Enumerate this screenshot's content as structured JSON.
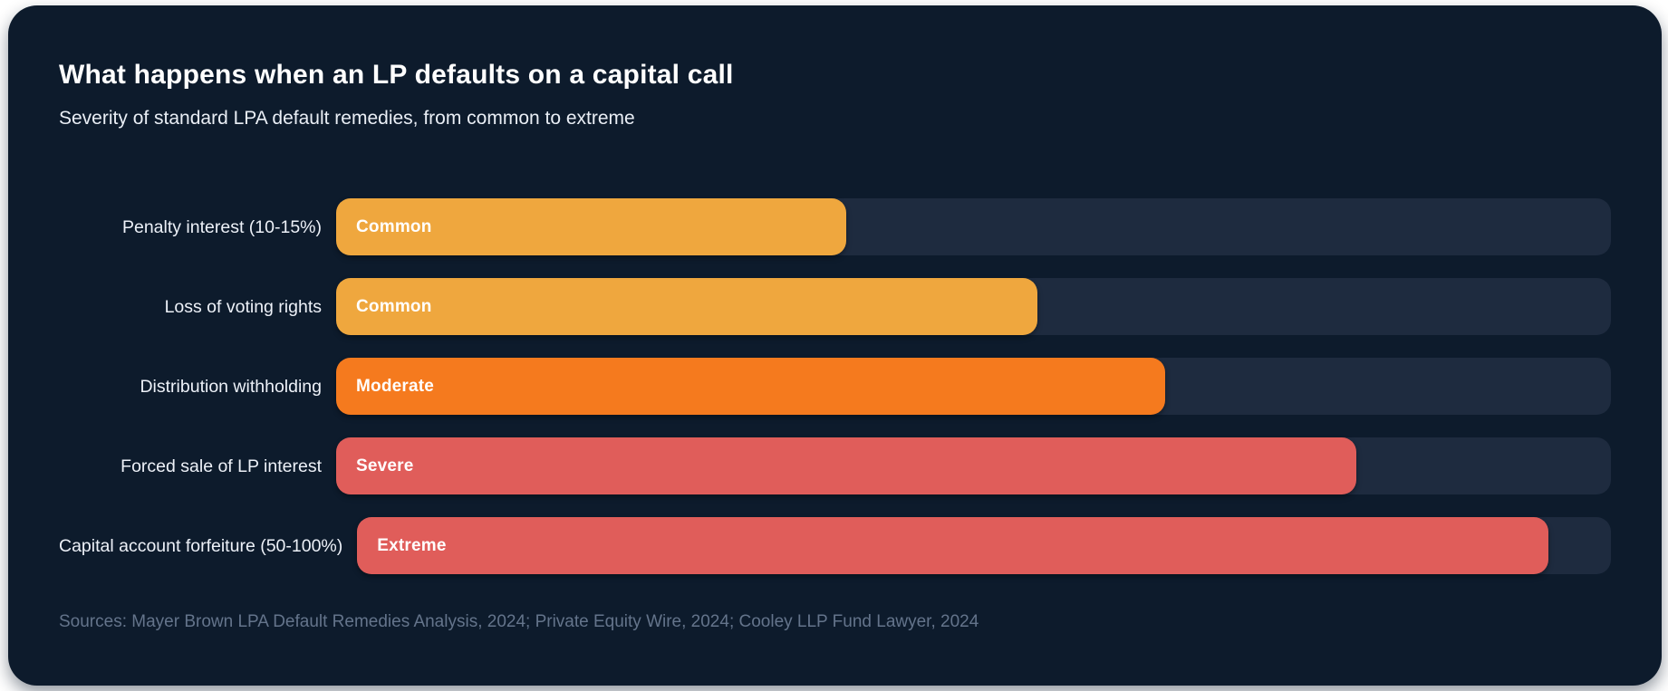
{
  "title": "What happens when an LP defaults on a capital call",
  "subtitle": "Severity of standard LPA default remedies, from common to extreme",
  "sources": "Sources: Mayer Brown LPA Default Remedies Analysis, 2024; Private Equity Wire, 2024; Cooley LLP Fund Lawyer, 2024",
  "colors": {
    "page_bg": "#ffffff",
    "card_bg": "#0d1b2c",
    "track": "#1e2b3f",
    "title_text": "#ffffff",
    "subtitle_text": "#e9eef5",
    "row_label_text": "#edf1f8",
    "bar_label_text": "#ffffff",
    "sources_text": "#64748b",
    "common": "#efa73e",
    "moderate": "#f57a1e",
    "severe": "#e05d5a",
    "extreme": "#e05d5a"
  },
  "rows": [
    {
      "label": "Penalty interest (10-15%)",
      "severity": "Common",
      "severity_key": "common",
      "value_pct": 40
    },
    {
      "label": "Loss of voting rights",
      "severity": "Common",
      "severity_key": "common",
      "value_pct": 55
    },
    {
      "label": "Distribution withholding",
      "severity": "Moderate",
      "severity_key": "moderate",
      "value_pct": 65
    },
    {
      "label": "Forced sale of LP interest",
      "severity": "Severe",
      "severity_key": "severe",
      "value_pct": 80
    },
    {
      "label": "Capital account forfeiture (50-100%)",
      "severity": "Extreme",
      "severity_key": "extreme",
      "value_pct": 95
    }
  ],
  "chart_data": {
    "type": "bar",
    "orientation": "horizontal",
    "title": "What happens when an LP defaults on a capital call",
    "subtitle": "Severity of standard LPA default remedies, from common to extreme",
    "categories": [
      "Penalty interest (10-15%)",
      "Loss of voting rights",
      "Distribution withholding",
      "Forced sale of LP interest",
      "Capital account forfeiture (50-100%)"
    ],
    "series": [
      {
        "name": "Severity (bar length, % of track)",
        "values": [
          40,
          55,
          65,
          80,
          95
        ]
      }
    ],
    "bar_labels": [
      "Common",
      "Common",
      "Moderate",
      "Severe",
      "Extreme"
    ],
    "bar_colors": [
      "#efa73e",
      "#efa73e",
      "#f57a1e",
      "#e05d5a",
      "#e05d5a"
    ],
    "xlabel": "",
    "ylabel": "",
    "xlim": [
      0,
      100
    ],
    "grid": false,
    "legend": false,
    "annotations": "Sources: Mayer Brown LPA Default Remedies Analysis, 2024; Private Equity Wire, 2024; Cooley LLP Fund Lawyer, 2024"
  }
}
